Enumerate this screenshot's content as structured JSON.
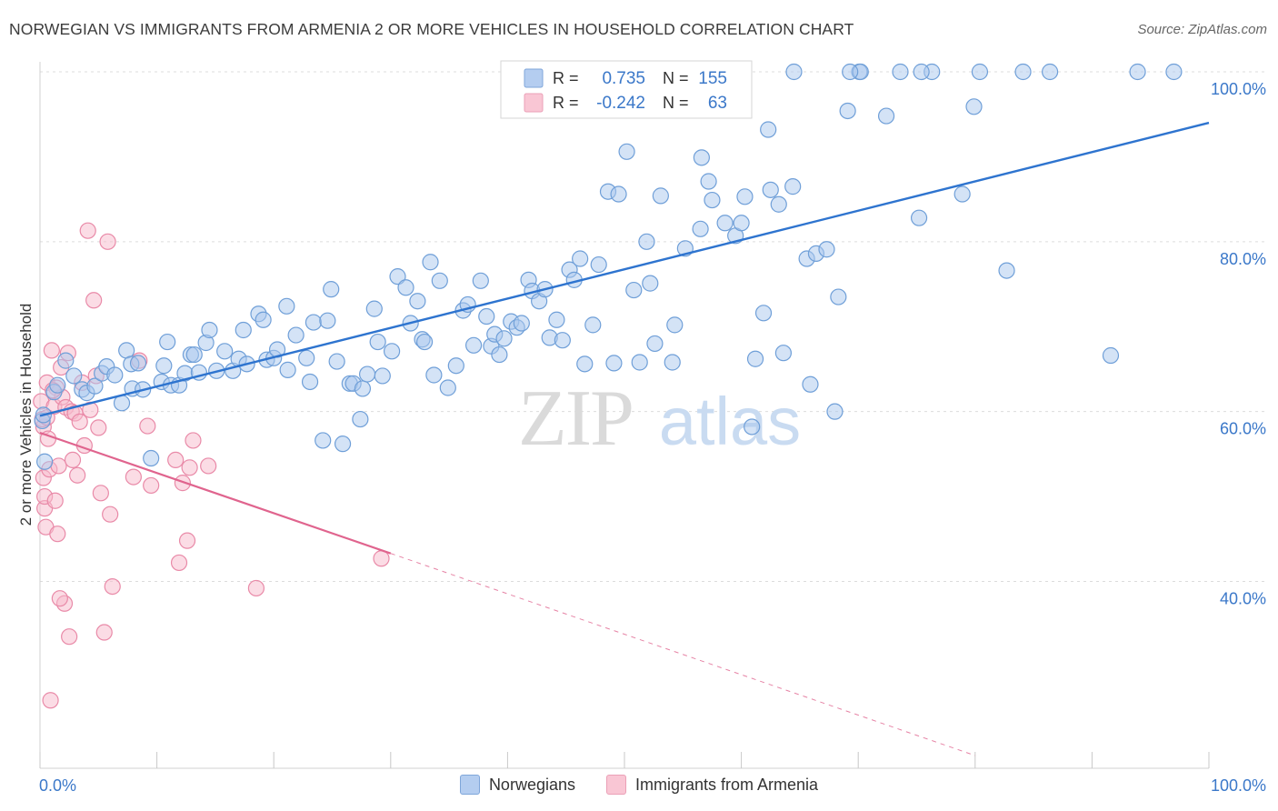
{
  "title": "NORWEGIAN VS IMMIGRANTS FROM ARMENIA 2 OR MORE VEHICLES IN HOUSEHOLD CORRELATION CHART",
  "source": "Source: ZipAtlas.com",
  "watermark": {
    "zip": "ZIP",
    "atlas": "atlas"
  },
  "colors": {
    "blue_fill": "#a9c7ee",
    "blue_stroke": "#6f9fd8",
    "blue_line": "#2e74cf",
    "pink_fill": "#f7b9cb",
    "pink_stroke": "#e98aa8",
    "pink_line": "#e0648e",
    "axis_label": "#3b78c9",
    "grid": "#dcdcdc"
  },
  "legend": {
    "rows": [
      {
        "r_label": "R =",
        "r_value": "0.735",
        "n_label": "N =",
        "n_value": "155",
        "color": "blue"
      },
      {
        "r_label": "R =",
        "r_value": "-0.242",
        "n_label": "N =",
        "n_value": "63",
        "color": "pink"
      }
    ]
  },
  "bottom_legend": [
    {
      "label": "Norwegians",
      "color": "blue"
    },
    {
      "label": "Immigrants from Armenia",
      "color": "pink"
    }
  ],
  "chart_data": {
    "type": "scatter",
    "ylabel": "2 or more Vehicles in Household",
    "xlabel": "",
    "xlim": [
      0,
      100
    ],
    "ylim": [
      18,
      100
    ],
    "x_tick_labels": [
      {
        "v": 0,
        "label": "0.0%"
      },
      {
        "v": 100,
        "label": "100.0%"
      }
    ],
    "y_tick_labels": [
      {
        "v": 40,
        "label": "40.0%"
      },
      {
        "v": 60,
        "label": "60.0%"
      },
      {
        "v": 80,
        "label": "80.0%"
      },
      {
        "v": 100,
        "label": "100.0%"
      }
    ],
    "grid": true,
    "series": [
      {
        "name": "Norwegians",
        "color": "blue",
        "trend": {
          "x0": 0,
          "y0": 59.5,
          "x1": 100,
          "y1": 94
        },
        "points": [
          [
            0.2,
            58.9
          ],
          [
            0.3,
            59.6
          ],
          [
            0.4,
            54.1
          ],
          [
            1.2,
            62.3
          ],
          [
            1.5,
            63.1
          ],
          [
            2.2,
            66
          ],
          [
            2.9,
            64.2
          ],
          [
            3.6,
            62.6
          ],
          [
            4,
            62.2
          ],
          [
            4.7,
            63
          ],
          [
            5.3,
            64.5
          ],
          [
            5.7,
            65.3
          ],
          [
            6.4,
            64.3
          ],
          [
            7,
            61
          ],
          [
            7.4,
            67.2
          ],
          [
            7.8,
            65.6
          ],
          [
            7.9,
            62.7
          ],
          [
            8.4,
            65.7
          ],
          [
            8.8,
            62.6
          ],
          [
            9.5,
            54.5
          ],
          [
            10.4,
            63.5
          ],
          [
            10.6,
            65.4
          ],
          [
            10.9,
            68.2
          ],
          [
            11.2,
            63.1
          ],
          [
            11.9,
            63.1
          ],
          [
            12.4,
            64.5
          ],
          [
            12.9,
            66.7
          ],
          [
            13.2,
            66.7
          ],
          [
            13.6,
            64.6
          ],
          [
            14.2,
            68.1
          ],
          [
            14.5,
            69.6
          ],
          [
            15.1,
            64.8
          ],
          [
            15.8,
            67.1
          ],
          [
            16.5,
            64.8
          ],
          [
            17,
            66.2
          ],
          [
            17.4,
            69.6
          ],
          [
            17.7,
            65.6
          ],
          [
            18.7,
            71.5
          ],
          [
            19.1,
            70.8
          ],
          [
            19.4,
            66.1
          ],
          [
            20,
            66.3
          ],
          [
            20.3,
            67.3
          ],
          [
            21.1,
            72.4
          ],
          [
            21.2,
            64.9
          ],
          [
            21.9,
            69
          ],
          [
            22.8,
            66.3
          ],
          [
            23.1,
            63.5
          ],
          [
            23.4,
            70.5
          ],
          [
            24.2,
            56.6
          ],
          [
            24.6,
            70.7
          ],
          [
            24.9,
            74.4
          ],
          [
            25.4,
            65.9
          ],
          [
            25.9,
            56.2
          ],
          [
            26.5,
            63.3
          ],
          [
            26.8,
            63.3
          ],
          [
            27.4,
            59.1
          ],
          [
            27.6,
            62.7
          ],
          [
            28,
            64.4
          ],
          [
            28.6,
            72.1
          ],
          [
            28.9,
            68.2
          ],
          [
            29.3,
            64.2
          ],
          [
            30.1,
            67.1
          ],
          [
            30.6,
            75.9
          ],
          [
            31.3,
            74.6
          ],
          [
            31.7,
            70.4
          ],
          [
            32.3,
            73
          ],
          [
            32.7,
            68.5
          ],
          [
            32.9,
            68.2
          ],
          [
            33.4,
            77.6
          ],
          [
            33.7,
            64.3
          ],
          [
            34.2,
            75.4
          ],
          [
            34.9,
            62.8
          ],
          [
            35.6,
            65.4
          ],
          [
            36.2,
            71.9
          ],
          [
            36.6,
            72.6
          ],
          [
            37.1,
            67.8
          ],
          [
            37.7,
            75.4
          ],
          [
            38.2,
            71.2
          ],
          [
            38.6,
            67.7
          ],
          [
            38.9,
            69.1
          ],
          [
            39.3,
            66.7
          ],
          [
            39.7,
            68.6
          ],
          [
            40.3,
            70.6
          ],
          [
            40.8,
            69.9
          ],
          [
            41.2,
            70.4
          ],
          [
            41.8,
            75.5
          ],
          [
            42.1,
            74.2
          ],
          [
            42.7,
            73
          ],
          [
            43.2,
            74.4
          ],
          [
            43.6,
            68.7
          ],
          [
            44.2,
            70.8
          ],
          [
            44.7,
            68.4
          ],
          [
            45.3,
            76.7
          ],
          [
            45.7,
            75.5
          ],
          [
            46.2,
            78
          ],
          [
            46.6,
            65.6
          ],
          [
            47.3,
            70.2
          ],
          [
            47.8,
            77.3
          ],
          [
            48.6,
            85.9
          ],
          [
            49.1,
            65.7
          ],
          [
            49.5,
            85.6
          ],
          [
            50.2,
            90.6
          ],
          [
            50.8,
            74.3
          ],
          [
            51.3,
            65.8
          ],
          [
            51.9,
            80
          ],
          [
            52.2,
            75.1
          ],
          [
            52.6,
            68
          ],
          [
            53.1,
            85.4
          ],
          [
            54.1,
            65.8
          ],
          [
            54.3,
            70.2
          ],
          [
            55.2,
            79.2
          ],
          [
            56.5,
            81.5
          ],
          [
            56.6,
            89.9
          ],
          [
            57.2,
            87.1
          ],
          [
            57.5,
            84.9
          ],
          [
            58.6,
            82.2
          ],
          [
            59.5,
            80.7
          ],
          [
            60,
            82.2
          ],
          [
            60.3,
            85.3
          ],
          [
            60.9,
            58.2
          ],
          [
            61.2,
            66.2
          ],
          [
            61.9,
            71.6
          ],
          [
            62.3,
            93.2
          ],
          [
            62.5,
            86.1
          ],
          [
            63.2,
            84.4
          ],
          [
            63.6,
            66.9
          ],
          [
            64.4,
            86.5
          ],
          [
            65.6,
            78
          ],
          [
            65.9,
            63.2
          ],
          [
            66.4,
            78.6
          ],
          [
            67.3,
            79.1
          ],
          [
            68,
            60
          ],
          [
            68.3,
            73.5
          ],
          [
            69.1,
            95.4
          ],
          [
            70.1,
            100
          ],
          [
            70.2,
            100
          ],
          [
            72.4,
            94.8
          ],
          [
            73.6,
            100
          ],
          [
            75.2,
            82.8
          ],
          [
            76.3,
            100
          ],
          [
            78.9,
            85.6
          ],
          [
            79.9,
            95.9
          ],
          [
            80.4,
            100
          ],
          [
            82.7,
            76.6
          ],
          [
            84.1,
            100
          ],
          [
            86.4,
            100
          ],
          [
            91.6,
            66.6
          ],
          [
            93.9,
            100
          ],
          [
            97,
            100
          ],
          [
            53.6,
            100
          ],
          [
            59.4,
            100
          ],
          [
            64.5,
            100
          ],
          [
            69.3,
            100
          ],
          [
            75.4,
            100
          ]
        ]
      },
      {
        "name": "Immigrants from Armenia",
        "color": "pink",
        "trend": {
          "x0": 0,
          "y0": 57.5,
          "x1": 30,
          "y1": 43.3
        },
        "trend_dashed": {
          "x0": 30,
          "y0": 43.3,
          "x1": 80,
          "y1": 19.5
        },
        "points": [
          [
            0.1,
            61.2
          ],
          [
            0.3,
            58.2
          ],
          [
            0.3,
            52.2
          ],
          [
            0.4,
            48.6
          ],
          [
            0.5,
            46.4
          ],
          [
            0.6,
            63.4
          ],
          [
            0.7,
            56.8
          ],
          [
            0.8,
            53.2
          ],
          [
            1,
            67.2
          ],
          [
            1.2,
            60.6
          ],
          [
            1.4,
            62.8
          ],
          [
            1.5,
            45.6
          ],
          [
            1.6,
            53.6
          ],
          [
            1.8,
            65.2
          ],
          [
            1.9,
            61.7
          ],
          [
            2.1,
            37.4
          ],
          [
            2.2,
            60.5
          ],
          [
            2.4,
            66.9
          ],
          [
            2.5,
            33.5
          ],
          [
            2.7,
            60
          ],
          [
            3,
            59.8
          ],
          [
            3.2,
            52.5
          ],
          [
            3.4,
            58.8
          ],
          [
            3.6,
            63.4
          ],
          [
            3.8,
            56
          ],
          [
            4.1,
            81.3
          ],
          [
            4.3,
            60.2
          ],
          [
            4.6,
            73.1
          ],
          [
            4.8,
            64.2
          ],
          [
            5,
            58.1
          ],
          [
            5.2,
            50.4
          ],
          [
            5.5,
            34
          ],
          [
            5.8,
            80
          ],
          [
            6,
            47.9
          ],
          [
            6.2,
            39.4
          ],
          [
            8,
            52.3
          ],
          [
            8.5,
            66
          ],
          [
            9.2,
            58.3
          ],
          [
            9.5,
            51.3
          ],
          [
            11.6,
            54.3
          ],
          [
            11.9,
            42.2
          ],
          [
            12.2,
            51.6
          ],
          [
            12.6,
            44.8
          ],
          [
            12.8,
            53.4
          ],
          [
            13.1,
            56.6
          ],
          [
            14.4,
            53.6
          ],
          [
            18.5,
            39.2
          ],
          [
            29.2,
            42.7
          ],
          [
            0.9,
            26
          ],
          [
            0.4,
            50
          ],
          [
            1.3,
            49.5
          ],
          [
            1.1,
            62.5
          ],
          [
            2.8,
            54.3
          ],
          [
            0.2,
            59.1
          ],
          [
            1.7,
            38
          ],
          [
            0.6,
            59.3
          ]
        ]
      }
    ]
  }
}
